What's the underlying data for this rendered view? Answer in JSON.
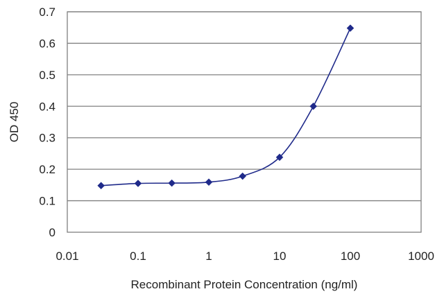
{
  "chart_data": {
    "type": "line",
    "title": "",
    "xlabel": "Recombinant Protein Concentration (ng/ml)",
    "ylabel": "OD 450",
    "x_scale": "log",
    "xlim": [
      0.01,
      1000
    ],
    "ylim": [
      0,
      0.7
    ],
    "x_ticks": [
      "0.01",
      "0.1",
      "1",
      "10",
      "100",
      "1000"
    ],
    "y_ticks": [
      "0",
      "0.1",
      "0.2",
      "0.3",
      "0.4",
      "0.5",
      "0.6",
      "0.7"
    ],
    "grid": "horizontal",
    "series": [
      {
        "x": [
          0.03,
          0.1,
          0.3,
          1,
          3,
          10,
          30,
          100
        ],
        "y": [
          0.148,
          0.155,
          0.156,
          0.159,
          0.178,
          0.238,
          0.4,
          0.648
        ],
        "color": "#1f2a8a",
        "marker": "diamond"
      }
    ],
    "plot_background": "#ffffff",
    "grid_color": "#808080"
  }
}
